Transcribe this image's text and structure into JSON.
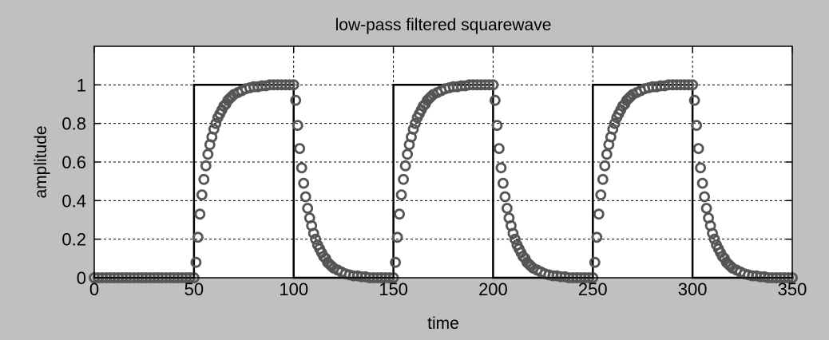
{
  "chart_data": {
    "type": "line",
    "title": "low-pass filtered squarewave",
    "xlabel": "time",
    "ylabel": "amplitude",
    "xlim": [
      0,
      350
    ],
    "ylim": [
      0,
      1.2
    ],
    "xticks": [
      0,
      50,
      100,
      150,
      200,
      250,
      300,
      350
    ],
    "xtick_labels": [
      "0",
      "50",
      "100",
      "150",
      "200",
      "250",
      "300",
      "350"
    ],
    "yticks": [
      0,
      0.2,
      0.4,
      0.6,
      0.8,
      1
    ],
    "ytick_labels": [
      "0",
      "0.2",
      "0.4",
      "0.6",
      "0.8",
      "1"
    ],
    "grid": true,
    "grid_style": "dotted",
    "background_color": "#c0c0c0",
    "plot_background_color": "#ffffff",
    "series": [
      {
        "style": "line",
        "color": "#000000",
        "x": [
          0,
          50,
          50,
          100,
          100,
          150,
          150,
          200,
          200,
          250,
          250,
          300,
          300,
          350
        ],
        "y": [
          0,
          0,
          1,
          1,
          0,
          0,
          1,
          1,
          0,
          0,
          1,
          1,
          0,
          0
        ]
      },
      {
        "style": "markers",
        "marker": "circle",
        "color": "#555555",
        "x": [
          0,
          2,
          4,
          6,
          8,
          10,
          12,
          14,
          16,
          18,
          20,
          22,
          24,
          26,
          28,
          30,
          32,
          34,
          36,
          38,
          40,
          42,
          44,
          46,
          48,
          50,
          51,
          52,
          53,
          54,
          55,
          56,
          57,
          58,
          59,
          60,
          61,
          62,
          63,
          64,
          65,
          66,
          67,
          68,
          69,
          70,
          72,
          74,
          76,
          78,
          80,
          82,
          84,
          86,
          88,
          90,
          92,
          94,
          96,
          98,
          100,
          101,
          102,
          103,
          104,
          105,
          106,
          107,
          108,
          109,
          110,
          111,
          112,
          113,
          114,
          115,
          116,
          117,
          118,
          119,
          120,
          122,
          124,
          126,
          128,
          130,
          132,
          134,
          136,
          138,
          140,
          142,
          144,
          146,
          148,
          150,
          151,
          152,
          153,
          154,
          155,
          156,
          157,
          158,
          159,
          160,
          161,
          162,
          163,
          164,
          165,
          166,
          167,
          168,
          169,
          170,
          172,
          174,
          176,
          178,
          180,
          182,
          184,
          186,
          188,
          190,
          192,
          194,
          196,
          198,
          200,
          201,
          202,
          203,
          204,
          205,
          206,
          207,
          208,
          209,
          210,
          211,
          212,
          213,
          214,
          215,
          216,
          217,
          218,
          219,
          220,
          222,
          224,
          226,
          228,
          230,
          232,
          234,
          236,
          238,
          240,
          242,
          244,
          246,
          248,
          250,
          251,
          252,
          253,
          254,
          255,
          256,
          257,
          258,
          259,
          260,
          261,
          262,
          263,
          264,
          265,
          266,
          267,
          268,
          269,
          270,
          272,
          274,
          276,
          278,
          280,
          282,
          284,
          286,
          288,
          290,
          292,
          294,
          296,
          298,
          300,
          301,
          302,
          303,
          304,
          305,
          306,
          307,
          308,
          309,
          310,
          311,
          312,
          313,
          314,
          315,
          316,
          317,
          318,
          319,
          320,
          322,
          324,
          326,
          328,
          330,
          332,
          334,
          336,
          338,
          340,
          342,
          344,
          346,
          348,
          350
        ],
        "y": [
          0,
          0,
          0,
          0,
          0,
          0,
          0,
          0,
          0,
          0,
          0,
          0,
          0,
          0,
          0,
          0,
          0,
          0,
          0,
          0,
          0,
          0,
          0,
          0,
          0,
          0,
          0.08,
          0.21,
          0.33,
          0.43,
          0.51,
          0.58,
          0.64,
          0.69,
          0.73,
          0.77,
          0.8,
          0.83,
          0.85,
          0.87,
          0.89,
          0.9,
          0.92,
          0.93,
          0.94,
          0.95,
          0.96,
          0.97,
          0.98,
          0.985,
          0.99,
          0.99,
          0.995,
          0.995,
          1,
          1,
          1,
          1,
          1,
          1,
          1,
          0.92,
          0.79,
          0.67,
          0.57,
          0.49,
          0.42,
          0.36,
          0.31,
          0.27,
          0.23,
          0.2,
          0.17,
          0.15,
          0.13,
          0.11,
          0.1,
          0.08,
          0.07,
          0.06,
          0.05,
          0.04,
          0.03,
          0.02,
          0.015,
          0.01,
          0.01,
          0.005,
          0.005,
          0,
          0,
          0,
          0,
          0,
          0,
          0,
          0.08,
          0.21,
          0.33,
          0.43,
          0.51,
          0.58,
          0.64,
          0.69,
          0.73,
          0.77,
          0.8,
          0.83,
          0.85,
          0.87,
          0.89,
          0.9,
          0.92,
          0.93,
          0.94,
          0.95,
          0.96,
          0.97,
          0.98,
          0.985,
          0.99,
          0.99,
          0.995,
          0.995,
          1,
          1,
          1,
          1,
          1,
          1,
          1,
          0.92,
          0.79,
          0.67,
          0.57,
          0.49,
          0.42,
          0.36,
          0.31,
          0.27,
          0.23,
          0.2,
          0.17,
          0.15,
          0.13,
          0.11,
          0.1,
          0.08,
          0.07,
          0.06,
          0.05,
          0.04,
          0.03,
          0.02,
          0.015,
          0.01,
          0.01,
          0.005,
          0.005,
          0,
          0,
          0,
          0,
          0,
          0,
          0,
          0.08,
          0.21,
          0.33,
          0.43,
          0.51,
          0.58,
          0.64,
          0.69,
          0.73,
          0.77,
          0.8,
          0.83,
          0.85,
          0.87,
          0.89,
          0.9,
          0.92,
          0.93,
          0.94,
          0.95,
          0.96,
          0.97,
          0.98,
          0.985,
          0.99,
          0.99,
          0.995,
          0.995,
          1,
          1,
          1,
          1,
          1,
          1,
          1,
          0.92,
          0.79,
          0.67,
          0.57,
          0.49,
          0.42,
          0.36,
          0.31,
          0.27,
          0.23,
          0.2,
          0.17,
          0.15,
          0.13,
          0.11,
          0.1,
          0.08,
          0.07,
          0.06,
          0.05,
          0.04,
          0.03,
          0.02,
          0.015,
          0.01,
          0.01,
          0.005,
          0.005,
          0,
          0,
          0,
          0,
          0,
          0,
          0
        ]
      }
    ]
  }
}
